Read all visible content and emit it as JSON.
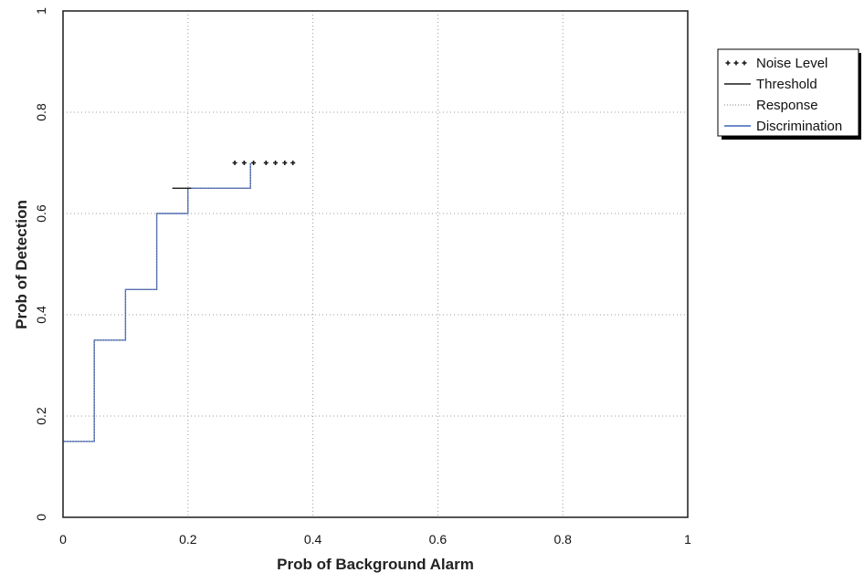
{
  "chart_data": {
    "type": "line",
    "xlabel": "Prob of Background Alarm",
    "ylabel": "Prob of Detection",
    "xlim": [
      0,
      1
    ],
    "ylim": [
      0,
      1
    ],
    "x_ticks": [
      "0",
      "0.2",
      "0.4",
      "0.6",
      "0.8",
      "1"
    ],
    "y_ticks": [
      "0",
      "0.2",
      "0.4",
      "0.6",
      "0.8",
      "1"
    ],
    "grid": true,
    "legend_position": "right-top",
    "series": [
      {
        "name": "Noise Level",
        "style": "plus-markers",
        "color": "#1a1a1a",
        "points": [
          [
            0.275,
            0.7
          ],
          [
            0.29,
            0.7
          ],
          [
            0.305,
            0.7
          ],
          [
            0.325,
            0.7
          ],
          [
            0.34,
            0.7
          ],
          [
            0.355,
            0.7
          ],
          [
            0.368,
            0.7
          ]
        ]
      },
      {
        "name": "Threshold",
        "style": "solid",
        "color": "#1a1a1a",
        "points": [
          [
            0.175,
            0.65
          ],
          [
            0.205,
            0.65
          ]
        ]
      },
      {
        "name": "Response",
        "style": "dotted",
        "color": "#9a9a9a",
        "points": [
          [
            0,
            0.15
          ],
          [
            0.05,
            0.15
          ],
          [
            0.05,
            0.35
          ],
          [
            0.1,
            0.35
          ],
          [
            0.1,
            0.45
          ],
          [
            0.15,
            0.45
          ],
          [
            0.15,
            0.6
          ],
          [
            0.2,
            0.6
          ],
          [
            0.2,
            0.65
          ],
          [
            0.3,
            0.65
          ],
          [
            0.3,
            0.7
          ]
        ]
      },
      {
        "name": "Discrimination",
        "style": "solid",
        "color": "#3f63b8",
        "points": [
          [
            0,
            0.15
          ],
          [
            0.05,
            0.15
          ],
          [
            0.05,
            0.35
          ],
          [
            0.1,
            0.35
          ],
          [
            0.1,
            0.45
          ],
          [
            0.15,
            0.45
          ],
          [
            0.15,
            0.6
          ],
          [
            0.2,
            0.6
          ],
          [
            0.2,
            0.65
          ],
          [
            0.3,
            0.65
          ],
          [
            0.3,
            0.7
          ]
        ]
      }
    ]
  }
}
